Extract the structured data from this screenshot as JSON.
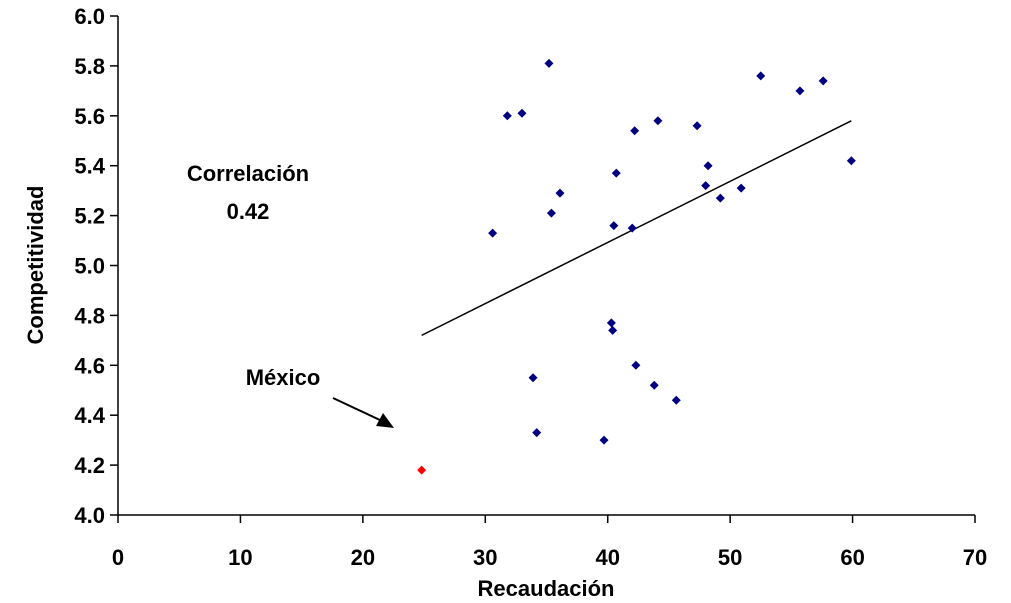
{
  "chart_data": {
    "type": "scatter",
    "title": "",
    "xlabel": "Recaudación",
    "ylabel": "Competitividad",
    "xlim": [
      0,
      70
    ],
    "ylim": [
      4.0,
      6.0
    ],
    "x_ticks": [
      0,
      10,
      20,
      30,
      40,
      50,
      60,
      70
    ],
    "x_tick_labels": [
      "0",
      "10",
      "20",
      "30",
      "40",
      "50",
      "60",
      "70"
    ],
    "y_ticks": [
      4.0,
      4.2,
      4.4,
      4.6,
      4.8,
      5.0,
      5.2,
      5.4,
      5.6,
      5.8,
      6.0
    ],
    "y_tick_labels": [
      "4.0",
      "4.2",
      "4.4",
      "4.6",
      "4.8",
      "5.0",
      "5.2",
      "5.4",
      "5.6",
      "5.8",
      "6.0"
    ],
    "grid": false,
    "marker": "diamond",
    "point_color": "#000080",
    "highlight_color": "#ff0000",
    "series": [
      {
        "points": [
          [
            30.6,
            5.13
          ],
          [
            31.8,
            5.6
          ],
          [
            33.0,
            5.61
          ],
          [
            33.9,
            4.55
          ],
          [
            34.2,
            4.33
          ],
          [
            35.2,
            5.81
          ],
          [
            35.4,
            5.21
          ],
          [
            36.1,
            5.29
          ],
          [
            39.7,
            4.3
          ],
          [
            40.3,
            4.77
          ],
          [
            40.4,
            4.74
          ],
          [
            40.5,
            5.16
          ],
          [
            40.7,
            5.37
          ],
          [
            42.0,
            5.15
          ],
          [
            42.2,
            5.54
          ],
          [
            42.3,
            4.6
          ],
          [
            43.8,
            4.52
          ],
          [
            44.1,
            5.58
          ],
          [
            45.6,
            4.46
          ],
          [
            47.3,
            5.56
          ],
          [
            48.0,
            5.32
          ],
          [
            48.2,
            5.4
          ],
          [
            49.2,
            5.27
          ],
          [
            50.9,
            5.31
          ],
          [
            52.5,
            5.76
          ],
          [
            55.7,
            5.7
          ],
          [
            57.6,
            5.74
          ],
          [
            59.9,
            5.42
          ]
        ]
      },
      {
        "name": "México",
        "points": [
          [
            24.8,
            4.18
          ]
        ]
      }
    ],
    "trendline": {
      "x": [
        24.8,
        59.9
      ],
      "y": [
        4.72,
        5.58
      ]
    },
    "annotations": {
      "correlation_label": "Correlación",
      "correlation_value": "0.42",
      "mexico_label": "México"
    }
  }
}
